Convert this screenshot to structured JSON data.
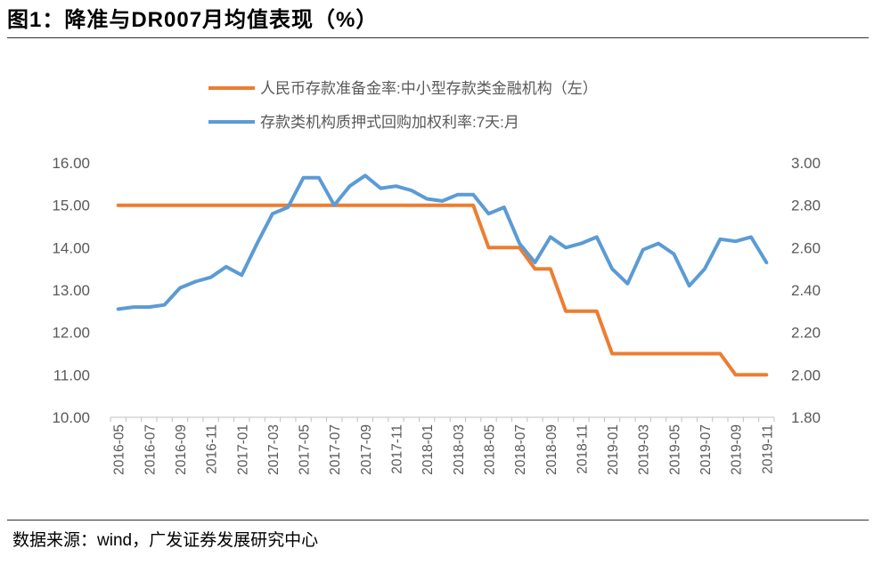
{
  "title": "图1：降准与DR007月均值表现（%）",
  "source": "数据来源：wind，广发证券发展研究中心",
  "colors": {
    "orange": "#ED7D31",
    "blue": "#5B9BD5",
    "axis": "#BFBFBF",
    "text": "#595959"
  },
  "chart_data": {
    "type": "line",
    "x": [
      "2016-05",
      "2016-06",
      "2016-07",
      "2016-08",
      "2016-09",
      "2016-10",
      "2016-11",
      "2016-12",
      "2017-01",
      "2017-02",
      "2017-03",
      "2017-04",
      "2017-05",
      "2017-06",
      "2017-07",
      "2017-08",
      "2017-09",
      "2017-10",
      "2017-11",
      "2017-12",
      "2018-01",
      "2018-02",
      "2018-03",
      "2018-04",
      "2018-05",
      "2018-06",
      "2018-07",
      "2018-08",
      "2018-09",
      "2018-10",
      "2018-11",
      "2018-12",
      "2019-01",
      "2019-02",
      "2019-03",
      "2019-04",
      "2019-05",
      "2019-06",
      "2019-07",
      "2019-08",
      "2019-09",
      "2019-10",
      "2019-11"
    ],
    "xticklabels": [
      "2016-05",
      "2016-07",
      "2016-09",
      "2016-11",
      "2017-01",
      "2017-03",
      "2017-05",
      "2017-07",
      "2017-09",
      "2017-11",
      "2018-01",
      "2018-03",
      "2018-05",
      "2018-07",
      "2018-09",
      "2018-11",
      "2019-01",
      "2019-03",
      "2019-05",
      "2019-07",
      "2019-09",
      "2019-11"
    ],
    "series": [
      {
        "name": "人民币存款准备金率:中小型存款类金融机构（左）",
        "axis": "left",
        "color": "#ED7D31",
        "values": [
          15,
          15,
          15,
          15,
          15,
          15,
          15,
          15,
          15,
          15,
          15,
          15,
          15,
          15,
          15,
          15,
          15,
          15,
          15,
          15,
          15,
          15,
          15,
          15,
          14,
          14,
          14,
          13.5,
          13.5,
          12.5,
          12.5,
          12.5,
          11.5,
          11.5,
          11.5,
          11.5,
          11.5,
          11.5,
          11.5,
          11.5,
          11,
          11,
          11
        ]
      },
      {
        "name": "存款类机构质押式回购加权利率:7天:月",
        "axis": "right",
        "color": "#5B9BD5",
        "values": [
          2.31,
          2.32,
          2.32,
          2.33,
          2.41,
          2.44,
          2.46,
          2.51,
          2.47,
          2.62,
          2.76,
          2.79,
          2.93,
          2.93,
          2.8,
          2.89,
          2.94,
          2.88,
          2.89,
          2.87,
          2.83,
          2.82,
          2.85,
          2.85,
          2.76,
          2.79,
          2.62,
          2.53,
          2.65,
          2.6,
          2.62,
          2.65,
          2.5,
          2.43,
          2.59,
          2.62,
          2.57,
          2.42,
          2.5,
          2.64,
          2.63,
          2.65,
          2.53
        ]
      }
    ],
    "yleft": {
      "min": 10,
      "max": 16,
      "step": 1,
      "ticklabels": [
        "10.00",
        "11.00",
        "12.00",
        "13.00",
        "14.00",
        "15.00",
        "16.00"
      ]
    },
    "yright": {
      "min": 1.8,
      "max": 3.0,
      "step": 0.2,
      "ticklabels": [
        "1.80",
        "2.00",
        "2.20",
        "2.40",
        "2.60",
        "2.80",
        "3.00"
      ]
    },
    "legend_position": "top"
  }
}
